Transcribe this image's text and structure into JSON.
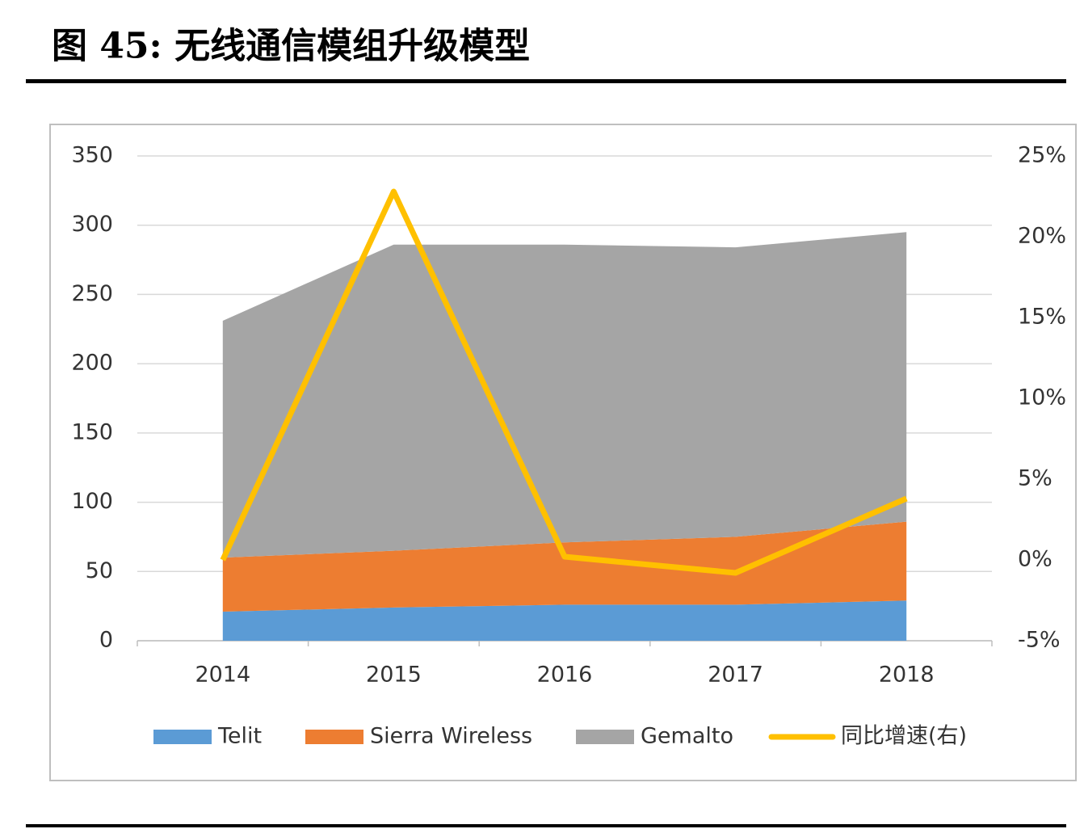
{
  "chart_data": {
    "type": "area",
    "title": "图 45:  无线通信模组升级模型",
    "categories": [
      "2014",
      "2015",
      "2016",
      "2017",
      "2018"
    ],
    "series": [
      {
        "name": "Telit",
        "type": "area",
        "color": "#5b9bd5",
        "values": [
          21,
          24,
          26,
          26,
          29
        ]
      },
      {
        "name": "Sierra Wireless",
        "type": "area",
        "color": "#ed7d31",
        "values": [
          39,
          41,
          45,
          49,
          57
        ]
      },
      {
        "name": "Gemalto",
        "type": "area",
        "color": "#a5a5a5",
        "values": [
          171,
          221,
          215,
          209,
          209
        ]
      },
      {
        "name": "同比增速(右)",
        "type": "line",
        "axis": "y2",
        "color": "#ffc000",
        "values": [
          0,
          22.8,
          0.2,
          -0.8,
          3.8
        ]
      }
    ],
    "ylim": [
      0,
      350
    ],
    "yticks": [
      0,
      50,
      100,
      150,
      200,
      250,
      300,
      350
    ],
    "y2lim": [
      -5,
      25
    ],
    "y2ticks": [
      {
        "value": -5,
        "label": "-5%"
      },
      {
        "value": 0,
        "label": "0%"
      },
      {
        "value": 5,
        "label": "5%"
      },
      {
        "value": 10,
        "label": "10%"
      },
      {
        "value": 15,
        "label": "15%"
      },
      {
        "value": 20,
        "label": "20%"
      },
      {
        "value": 25,
        "label": "25%"
      }
    ],
    "grid": true,
    "legend": "bottom"
  }
}
